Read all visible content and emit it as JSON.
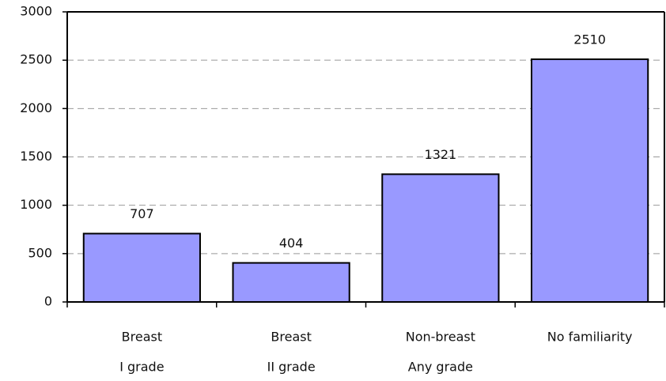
{
  "chart_data": {
    "type": "bar",
    "categories": [
      [
        "Breast",
        "I grade"
      ],
      [
        "Breast",
        "II grade"
      ],
      [
        "Non-breast",
        "Any grade"
      ],
      [
        "No familiarity"
      ]
    ],
    "values": [
      707,
      404,
      1321,
      2510
    ],
    "color": "#9999ff",
    "ylim": [
      0,
      3000
    ],
    "yticks": [
      0,
      500,
      1000,
      1500,
      2000,
      2500,
      3000
    ],
    "grid": true
  }
}
